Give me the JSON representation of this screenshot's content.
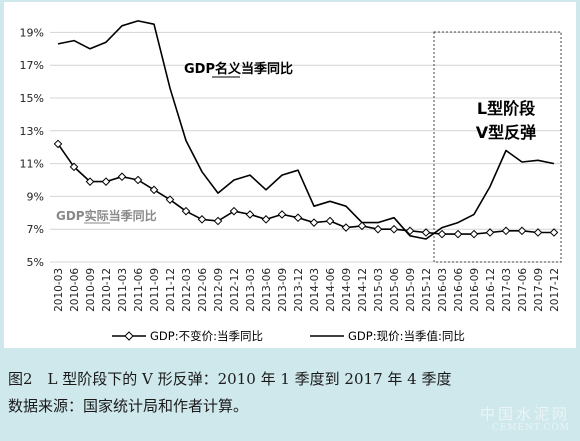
{
  "chart_data": {
    "type": "line",
    "ylim": [
      5,
      20
    ],
    "y_ticks": [
      "5%",
      "7%",
      "9%",
      "11%",
      "13%",
      "15%",
      "17%",
      "19%"
    ],
    "y_tick_values": [
      5,
      7,
      9,
      11,
      13,
      15,
      17,
      19
    ],
    "grid": "horizontal",
    "legend_position": "bottom",
    "categories": [
      "2010-03",
      "2010-06",
      "2010-09",
      "2010-12",
      "2011-03",
      "2011-06",
      "2011-09",
      "2011-12",
      "2012-03",
      "2012-06",
      "2012-09",
      "2012-12",
      "2013-03",
      "2013-06",
      "2013-09",
      "2013-12",
      "2014-03",
      "2014-06",
      "2014-09",
      "2014-12",
      "2015-03",
      "2015-06",
      "2015-09",
      "2015-12",
      "2016-03",
      "2016-06",
      "2016-09",
      "2016-12",
      "2017-03",
      "2017-06",
      "2017-09",
      "2017-12"
    ],
    "series": [
      {
        "name": "GDP:不变价:当季同比",
        "color": "#000000",
        "marker": "diamond",
        "values": [
          12.2,
          10.8,
          9.9,
          9.9,
          10.2,
          10.0,
          9.4,
          8.8,
          8.1,
          7.6,
          7.5,
          8.1,
          7.9,
          7.6,
          7.9,
          7.7,
          7.4,
          7.5,
          7.1,
          7.2,
          7.0,
          7.0,
          6.9,
          6.8,
          6.7,
          6.7,
          6.7,
          6.8,
          6.9,
          6.9,
          6.8,
          6.8
        ]
      },
      {
        "name": "GDP:现价:当季值:同比",
        "color": "#000000",
        "marker": "none",
        "values": [
          18.3,
          18.5,
          18.0,
          18.4,
          19.4,
          19.7,
          19.5,
          15.6,
          12.4,
          10.5,
          9.2,
          10.0,
          10.3,
          9.4,
          10.3,
          10.6,
          8.4,
          8.7,
          8.4,
          7.4,
          7.4,
          7.7,
          6.6,
          6.4,
          7.1,
          7.4,
          7.9,
          9.6,
          11.8,
          11.1,
          11.2,
          11.0
        ]
      }
    ],
    "annotations": {
      "nominal_label": "GDP名义当季同比",
      "real_label": "GDP实际当季同比",
      "box_line1": "L型阶段",
      "box_line2": "V型反弹",
      "box_range": [
        "2016-03",
        "2017-12"
      ]
    }
  },
  "caption": {
    "line1": "图2　L 型阶段下的 V 形反弹：2010 年 1 季度到 2017 年 4 季度",
    "line2": "数据来源：国家统计局和作者计算。"
  },
  "watermark": {
    "text_cn": "中国水泥网",
    "text_en": "CEMENT.COM"
  }
}
